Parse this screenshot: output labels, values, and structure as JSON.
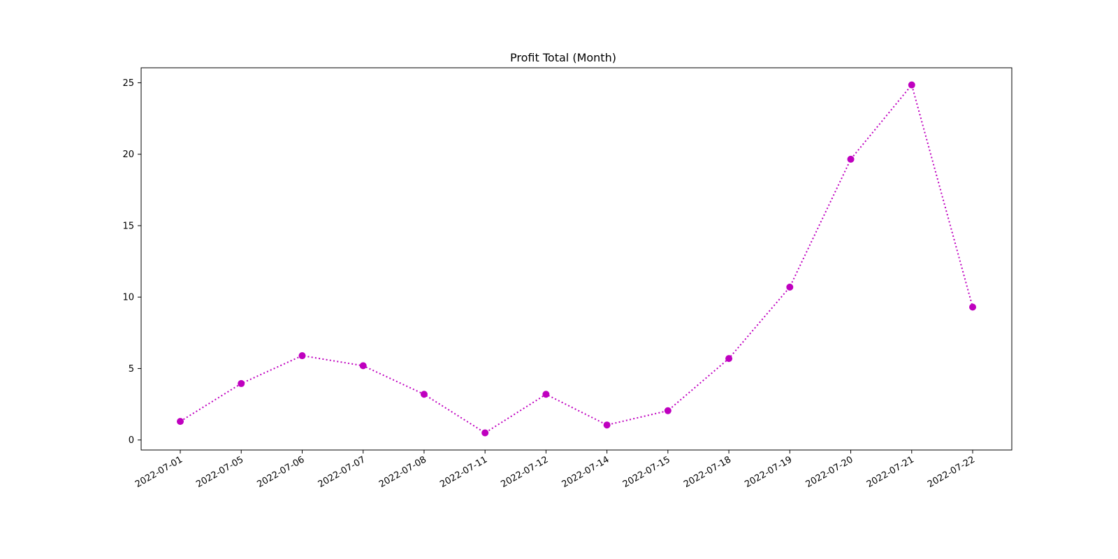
{
  "chart_data": {
    "type": "line",
    "title": "Profit Total (Month)",
    "xlabel": "",
    "ylabel": "",
    "categories": [
      "2022-07-01",
      "2022-07-05",
      "2022-07-06",
      "2022-07-07",
      "2022-07-08",
      "2022-07-11",
      "2022-07-12",
      "2022-07-14",
      "2022-07-15",
      "2022-07-18",
      "2022-07-19",
      "2022-07-20",
      "2022-07-21",
      "2022-07-22"
    ],
    "series": [
      {
        "values": [
          1.3,
          3.95,
          5.9,
          5.2,
          3.2,
          0.5,
          3.2,
          1.05,
          2.05,
          5.7,
          10.7,
          19.65,
          24.85,
          9.3
        ],
        "color": "#bf00bf",
        "line_style": "dotted",
        "marker": "circle"
      }
    ],
    "ylim": [
      -0.7,
      26.05
    ],
    "yticks": [
      0,
      5,
      10,
      15,
      20,
      25
    ],
    "grid": false,
    "legend": "none"
  }
}
